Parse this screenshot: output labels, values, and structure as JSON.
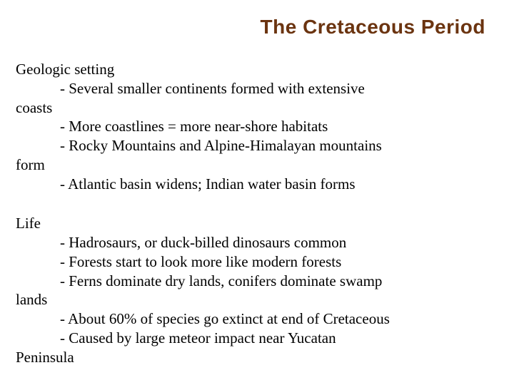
{
  "title": {
    "text": "The Cretaceous Period",
    "color": "#6b3410",
    "font_size": 28,
    "font_weight": "bold",
    "font_family": "Arial, Helvetica, sans-serif"
  },
  "body": {
    "color": "#000000",
    "font_size": 21,
    "font_family": "Georgia, 'Times New Roman', serif",
    "line_height": 1.28
  },
  "section1": {
    "heading": "Geologic setting",
    "lines": {
      "l1": "- Several smaller continents formed with extensive",
      "l1cont": "coasts",
      "l2": "- More coastlines = more near-shore habitats",
      "l3": "- Rocky Mountains and Alpine-Himalayan mountains",
      "l3cont": "form",
      "l4": "- Atlantic basin widens; Indian water basin forms"
    }
  },
  "section2": {
    "heading": "Life",
    "lines": {
      "l1": "- Hadrosaurs, or duck-billed dinosaurs common",
      "l2": "- Forests start to look more like modern forests",
      "l3": "- Ferns dominate dry lands, conifers dominate swamp",
      "l3cont": "lands",
      "l4": "- About 60% of species go extinct at end of Cretaceous",
      "l5": "- Caused by large meteor impact near Yucatan",
      "l5cont": "Peninsula"
    }
  }
}
